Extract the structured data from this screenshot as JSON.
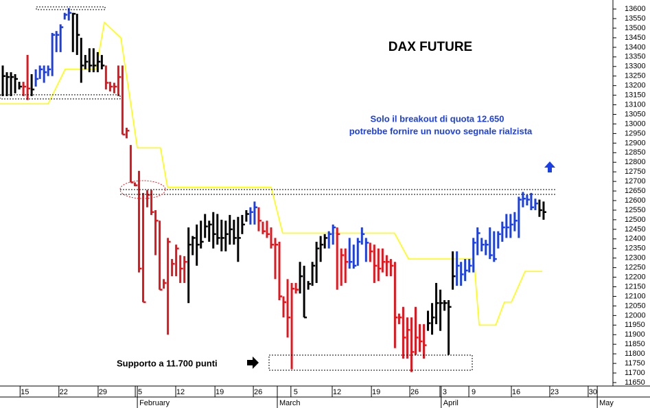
{
  "chart_data": {
    "type": "hlc",
    "title": "DAX FUTURE",
    "annotations": [
      "Solo il breakout di quota 12.650",
      "potrebbe fornire un nuovo segnale rialzista",
      "Supporto a 11.700 punti"
    ],
    "highs": [
      13305,
      13270,
      13270,
      13260,
      13220,
      13220,
      13360,
      13260,
      13285,
      13305,
      13305,
      13305,
      13475,
      13485,
      13520,
      13580,
      13605,
      13580,
      13575,
      13450,
      13360,
      13395,
      13395,
      13375,
      13360,
      13305,
      13220,
      13215,
      13305,
      13305,
      12980,
      12890,
      12695,
      12755,
      12640,
      12655,
      12655,
      12550,
      12495,
      12190,
      12405,
      12295,
      12370,
      12315,
      12310,
      12460,
      12415,
      12475,
      12495,
      12530,
      12495,
      12540,
      12530,
      12500,
      12495,
      12525,
      12500,
      12515,
      12525,
      12550,
      12565,
      12595,
      12565,
      12490,
      12495,
      12460,
      12405,
      12385,
      12100,
      12190,
      12170,
      12170,
      12280,
      12260,
      12180,
      12280,
      12385,
      12415,
      12425,
      12440,
      12475,
      12460,
      12350,
      12350,
      12405,
      12370,
      12405,
      12460,
      12405,
      12380,
      12370,
      12350,
      12350,
      12315,
      12295,
      12280,
      12010,
      12045,
      11990,
      11990,
      12045,
      11955,
      11955,
      12025,
      12065,
      12170,
      12135,
      12080,
      12080,
      12335,
      12335,
      12280,
      12295,
      12295,
      12405,
      12460,
      12405,
      12395,
      12460,
      12440,
      12440,
      12490,
      12530,
      12530,
      12540,
      12620,
      12645,
      12630,
      12640,
      12610,
      12605,
      12595
    ],
    "lows": [
      13145,
      13145,
      13145,
      13160,
      13180,
      13145,
      13125,
      13145,
      13195,
      13235,
      13215,
      13250,
      13250,
      13375,
      13375,
      13545,
      13540,
      13375,
      13360,
      13215,
      13285,
      13270,
      13270,
      13270,
      13285,
      13180,
      13170,
      13160,
      13145,
      12945,
      12925,
      12695,
      12675,
      12225,
      12070,
      12565,
      12525,
      12315,
      12135,
      12140,
      11900,
      12205,
      12205,
      12170,
      12170,
      12065,
      12315,
      12260,
      12350,
      12405,
      12385,
      12350,
      12370,
      12335,
      12335,
      12370,
      12370,
      12280,
      12425,
      12490,
      12475,
      12475,
      12440,
      12425,
      12405,
      12350,
      12190,
      12080,
      11990,
      11885,
      11720,
      12115,
      12115,
      11990,
      12135,
      12155,
      12170,
      12280,
      12350,
      12350,
      12370,
      12135,
      12155,
      12170,
      12245,
      12245,
      12260,
      12370,
      12280,
      12280,
      12170,
      12180,
      12225,
      12205,
      12205,
      11830,
      11955,
      11775,
      11775,
      11705,
      11795,
      11810,
      11775,
      11920,
      11900,
      11955,
      11920,
      12025,
      11795,
      12135,
      12155,
      12155,
      12180,
      12225,
      12225,
      12315,
      12335,
      12315,
      12295,
      12280,
      12350,
      12385,
      12405,
      12405,
      12440,
      12405,
      12565,
      12575,
      12550,
      12550,
      12515,
      12500
    ],
    "closes": [
      13250,
      13245,
      13245,
      13235,
      13195,
      13195,
      13185,
      13180,
      13235,
      13285,
      13270,
      13285,
      13465,
      13465,
      13505,
      13570,
      13580,
      13575,
      13465,
      13305,
      13325,
      13305,
      13305,
      13325,
      13305,
      13215,
      13195,
      13195,
      13245,
      12945,
      12965,
      12695,
      12680,
      12245,
      12070,
      12630,
      12540,
      12495,
      12135,
      12170,
      12385,
      12270,
      12350,
      12245,
      12280,
      12370,
      12405,
      12370,
      12385,
      12465,
      12475,
      12425,
      12405,
      12405,
      12425,
      12450,
      12405,
      12405,
      12475,
      12530,
      12540,
      12565,
      12495,
      12440,
      12425,
      12370,
      12370,
      12100,
      12070,
      11990,
      12140,
      12135,
      12205,
      11990,
      12165,
      12260,
      12350,
      12370,
      12405,
      12425,
      12460,
      12425,
      12315,
      12280,
      12280,
      12260,
      12385,
      12425,
      12380,
      12335,
      12260,
      12245,
      12280,
      12280,
      12260,
      11990,
      11990,
      11885,
      11925,
      11810,
      11885,
      11865,
      11845,
      11960,
      11990,
      12065,
      12065,
      12065,
      12045,
      12205,
      12260,
      12215,
      12235,
      12260,
      12380,
      12430,
      12370,
      12370,
      12315,
      12295,
      12425,
      12460,
      12460,
      12475,
      12495,
      12605,
      12610,
      12605,
      12565,
      12585,
      12550,
      12540
    ],
    "bar_colors": [
      "#000",
      "#000",
      "#000",
      "#000",
      "#000",
      "#e8141c",
      "#e8141c",
      "#000",
      "#1a3ee8",
      "#1a3ee8",
      "#1a3ee8",
      "#1a3ee8",
      "#1a3ee8",
      "#1a3ee8",
      "#1a3ee8",
      "#1a3ee8",
      "#1a3ee8",
      "#000",
      "#000",
      "#000",
      "#000",
      "#000",
      "#000",
      "#000",
      "#000",
      "#e8141c",
      "#e8141c",
      "#e8141c",
      "#e8141c",
      "#e8141c",
      "#e8141c",
      "#e8141c",
      "#e8141c",
      "#e8141c",
      "#e8141c",
      "#e8141c",
      "#e8141c",
      "#e8141c",
      "#e8141c",
      "#e8141c",
      "#e8141c",
      "#e8141c",
      "#e8141c",
      "#e8141c",
      "#e8141c",
      "#000",
      "#000",
      "#000",
      "#000",
      "#000",
      "#000",
      "#000",
      "#000",
      "#000",
      "#000",
      "#000",
      "#000",
      "#000",
      "#000",
      "#000",
      "#1a3ee8",
      "#1a3ee8",
      "#e8141c",
      "#e8141c",
      "#e8141c",
      "#e8141c",
      "#e8141c",
      "#e8141c",
      "#e8141c",
      "#e8141c",
      "#e8141c",
      "#e8141c",
      "#000",
      "#000",
      "#000",
      "#000",
      "#000",
      "#000",
      "#000",
      "#1a3ee8",
      "#1a3ee8",
      "#e8141c",
      "#e8141c",
      "#e8141c",
      "#1a3ee8",
      "#1a3ee8",
      "#1a3ee8",
      "#1a3ee8",
      "#1a3ee8",
      "#e8141c",
      "#e8141c",
      "#e8141c",
      "#e8141c",
      "#e8141c",
      "#e8141c",
      "#e8141c",
      "#e8141c",
      "#e8141c",
      "#e8141c",
      "#e8141c",
      "#e8141c",
      "#e8141c",
      "#e8141c",
      "#000",
      "#000",
      "#000",
      "#000",
      "#000",
      "#000",
      "#000",
      "#1a3ee8",
      "#1a3ee8",
      "#1a3ee8",
      "#1a3ee8",
      "#1a3ee8",
      "#1a3ee8",
      "#1a3ee8",
      "#1a3ee8",
      "#1a3ee8",
      "#1a3ee8",
      "#1a3ee8",
      "#1a3ee8",
      "#1a3ee8",
      "#1a3ee8",
      "#1a3ee8",
      "#1a3ee8",
      "#1a3ee8",
      "#1a3ee8",
      "#1a3ee8",
      "#1a3ee8",
      "#000",
      "#000",
      "#000"
    ],
    "line": {
      "color": "#ffff00",
      "x": [
        -0.7,
        11,
        15.1,
        22.6,
        24.6,
        28.6,
        32.6,
        38.2,
        39.9,
        65,
        67.8,
        94.9,
        98.3,
        114.1,
        115.4,
        119.4,
        121.5,
        123.2,
        126.5,
        130.7
      ],
      "values": [
        13105,
        13105,
        13285,
        13285,
        13530,
        13450,
        12875,
        12875,
        12670,
        12670,
        12430,
        12430,
        12295,
        12295,
        11950,
        11950,
        12070,
        12070,
        12230,
        12230
      ]
    },
    "xlim": [
      -0.665,
      147.8
    ],
    "xticks": [
      {
        "value": 4.2,
        "label": "15"
      },
      {
        "value": 13.6,
        "label": "22"
      },
      {
        "value": 23.1,
        "label": "29"
      },
      {
        "value": 32.1,
        "label": "5"
      },
      {
        "value": 41.9,
        "label": "12"
      },
      {
        "value": 51.4,
        "label": "19"
      },
      {
        "value": 60.7,
        "label": "26"
      },
      {
        "value": 69.8,
        "label": "5"
      },
      {
        "value": 79.8,
        "label": "12"
      },
      {
        "value": 89.3,
        "label": "19"
      },
      {
        "value": 98.6,
        "label": "26"
      },
      {
        "value": 105.9,
        "label": "3"
      },
      {
        "value": 112.9,
        "label": "9"
      },
      {
        "value": 123.2,
        "label": "16"
      },
      {
        "value": 132.5,
        "label": "23"
      },
      {
        "value": 141.8,
        "label": "30"
      }
    ],
    "months": [
      {
        "value": 32.6,
        "label": "February"
      },
      {
        "value": 66.5,
        "label": "March"
      },
      {
        "value": 106.2,
        "label": "April"
      },
      {
        "value": 144.0,
        "label": "May"
      }
    ],
    "ylim": [
      11632,
      13647
    ],
    "yticks": [
      11650,
      11700,
      11750,
      11800,
      11850,
      11900,
      11950,
      12000,
      12050,
      12100,
      12150,
      12200,
      12250,
      12300,
      12350,
      12400,
      12450,
      12500,
      12550,
      12600,
      12650,
      12700,
      12750,
      12800,
      12850,
      12900,
      12950,
      13000,
      13050,
      13100,
      13150,
      13200,
      13250,
      13300,
      13350,
      13400,
      13450,
      13500,
      13550,
      13600
    ]
  }
}
